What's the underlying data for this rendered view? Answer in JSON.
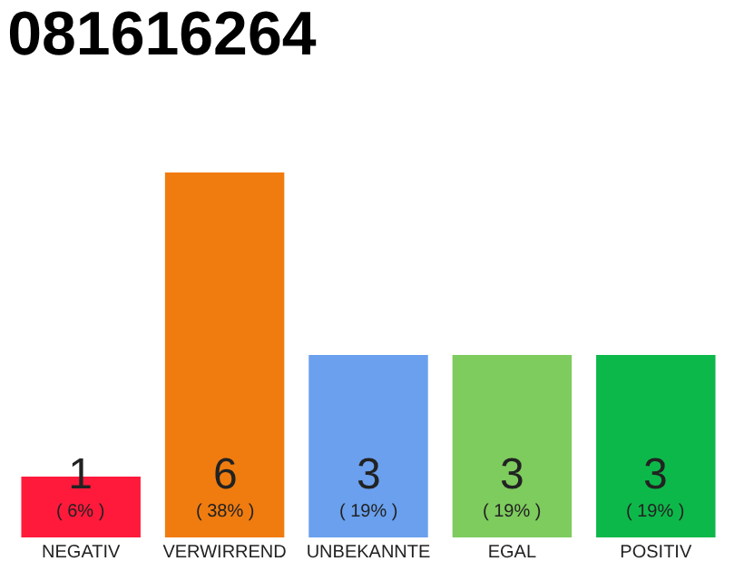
{
  "chart_data": {
    "type": "bar",
    "title": "081616264",
    "categories": [
      "NEGATIV",
      "VERWIRREND",
      "UNBEKANNTE",
      "EGAL",
      "POSITIV"
    ],
    "values": [
      1,
      6,
      3,
      3,
      3
    ],
    "colors": [
      "#ff1a3c",
      "#f07c0f",
      "#6aa0ee",
      "#7ecb5e",
      "#0db84a"
    ],
    "value_labels": [
      "1\n( 6% )",
      "6\n( 38% )",
      "3\n( 19% )",
      "3\n( 19% )",
      "3\n( 19% )"
    ],
    "legend": false
  }
}
